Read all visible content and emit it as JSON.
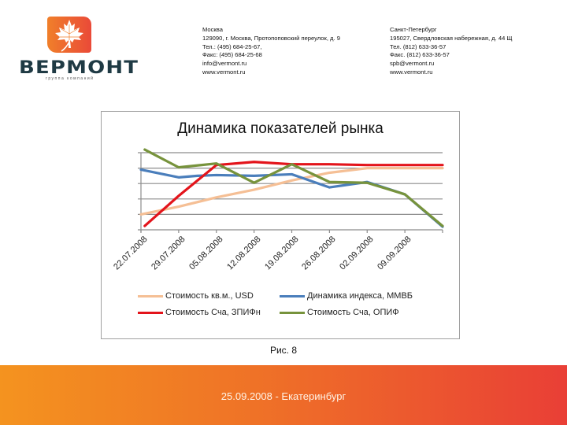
{
  "logo": {
    "icon": "maple-leaf-icon",
    "name": "ВЕРМОНТ",
    "subtitle": "группа компаний",
    "colors": {
      "badge_start": "#f07f2a",
      "badge_end": "#ea4a38",
      "text": "#1f3a44"
    }
  },
  "contacts": {
    "moscow": {
      "city": "Москва",
      "address": "129090, г. Москва, Протопоповский переулок, д. 9",
      "phone": "Тел.: (495) 684-25-67,",
      "fax": "Факс: (495) 684-25-68",
      "email": "info@vermont.ru",
      "web": "www.vermont.ru"
    },
    "spb": {
      "city": "Санкт-Петербург",
      "address": "195027, Свердловская набережная, д. 44 Щ",
      "phone": "Тел. (812) 633-36-57",
      "fax": "Факс. (812) 633-36-57",
      "email": "spb@vermont.ru",
      "web": "www.vermont.ru"
    }
  },
  "chart_data": {
    "type": "line",
    "title": "Динамика показателей рынка",
    "xlabel": "",
    "ylabel": "",
    "y_tick_labels": [],
    "grid": true,
    "legend_position": "bottom",
    "categories": [
      "22.07.2008",
      "29.07.2008",
      "05.08.2008",
      "12.08.2008",
      "19.08.2008",
      "26.08.2008",
      "02.09.2008",
      "09.09.2008",
      ""
    ],
    "x_positions": [
      0,
      0.5,
      1,
      1.5,
      2,
      2.5,
      3,
      3.5,
      4,
      4.5,
      5,
      5.5,
      6,
      6.5,
      7,
      7.5,
      8
    ],
    "ylim": [
      0,
      5
    ],
    "series": [
      {
        "name": "Стоимость кв.м., USD",
        "color": "#f5bf95",
        "points": [
          [
            0.0,
            1.0
          ],
          [
            1.0,
            1.5
          ],
          [
            2.0,
            2.1
          ],
          [
            3.0,
            2.6
          ],
          [
            4.0,
            3.2
          ],
          [
            5.0,
            3.7
          ],
          [
            6.0,
            4.0
          ],
          [
            7.0,
            4.0
          ],
          [
            8.0,
            4.0
          ]
        ]
      },
      {
        "name": "Динамика индекса, ММВБ",
        "color": "#4a7ebb",
        "points": [
          [
            0.0,
            3.9
          ],
          [
            1.0,
            3.4
          ],
          [
            1.5,
            3.5
          ],
          [
            2.0,
            3.55
          ],
          [
            3.0,
            3.5
          ],
          [
            4.0,
            3.6
          ],
          [
            5.0,
            2.75
          ],
          [
            6.0,
            3.1
          ],
          [
            7.0,
            2.3
          ],
          [
            8.0,
            0.2
          ]
        ]
      },
      {
        "name": "Стоимость Сча, ЗПИФн",
        "color": "#e3141b",
        "points": [
          [
            0.1,
            0.25
          ],
          [
            1.0,
            2.2
          ],
          [
            2.0,
            4.2
          ],
          [
            3.0,
            4.4
          ],
          [
            4.0,
            4.25
          ],
          [
            5.0,
            4.25
          ],
          [
            6.0,
            4.2
          ],
          [
            7.0,
            4.2
          ],
          [
            8.0,
            4.2
          ]
        ]
      },
      {
        "name": "Стоимость Сча, ОПИФ",
        "color": "#77933c",
        "points": [
          [
            0.1,
            5.2
          ],
          [
            1.0,
            4.05
          ],
          [
            2.0,
            4.3
          ],
          [
            3.0,
            3.05
          ],
          [
            4.0,
            4.25
          ],
          [
            5.0,
            3.1
          ],
          [
            6.0,
            3.05
          ],
          [
            7.0,
            2.3
          ],
          [
            8.0,
            0.25
          ]
        ]
      }
    ]
  },
  "caption": "Рис. 8",
  "footer": {
    "text": "25.09.2008 -  Екатеринбург",
    "colors": {
      "start": "#f4931f",
      "end": "#e93f36"
    }
  }
}
